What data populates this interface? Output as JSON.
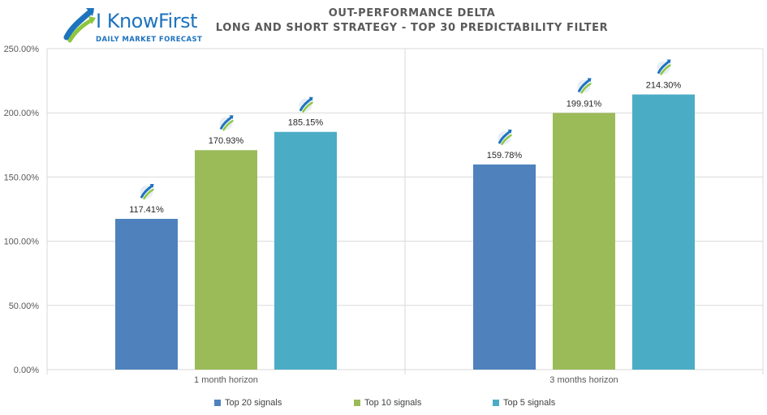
{
  "logo": {
    "brand": "I KnowFirst",
    "tagline": "DAILY MARKET FORECAST",
    "icon": "rising-arrow-logo-icon"
  },
  "chart_data": {
    "type": "bar",
    "title": "OUT-PERFORMANCE DELTA",
    "subtitle": "LONG AND SHORT STRATEGY - TOP 30 PREDICTABILITY FILTER",
    "categories": [
      "1 month horizon",
      "3 months horizon"
    ],
    "series": [
      {
        "name": "Top 20 signals",
        "color": "#4f81bd",
        "values": [
          117.41,
          159.78
        ],
        "labels": [
          "117.41%",
          "159.78%"
        ]
      },
      {
        "name": "Top 10 signals",
        "color": "#9bbb59",
        "values": [
          170.93,
          199.91
        ],
        "labels": [
          "170.93%",
          "199.91%"
        ]
      },
      {
        "name": "Top 5 signals",
        "color": "#4bacc6",
        "values": [
          185.15,
          214.3
        ],
        "labels": [
          "185.15%",
          "214.30%"
        ]
      }
    ],
    "ylim": [
      0,
      250
    ],
    "yticks": [
      0,
      50,
      100,
      150,
      200,
      250
    ],
    "ytick_labels": [
      "0.00%",
      "50.00%",
      "100.00%",
      "150.00%",
      "200.00%",
      "250.00%"
    ],
    "grid": true,
    "legend_position": "bottom",
    "xlabel": "",
    "ylabel": ""
  }
}
